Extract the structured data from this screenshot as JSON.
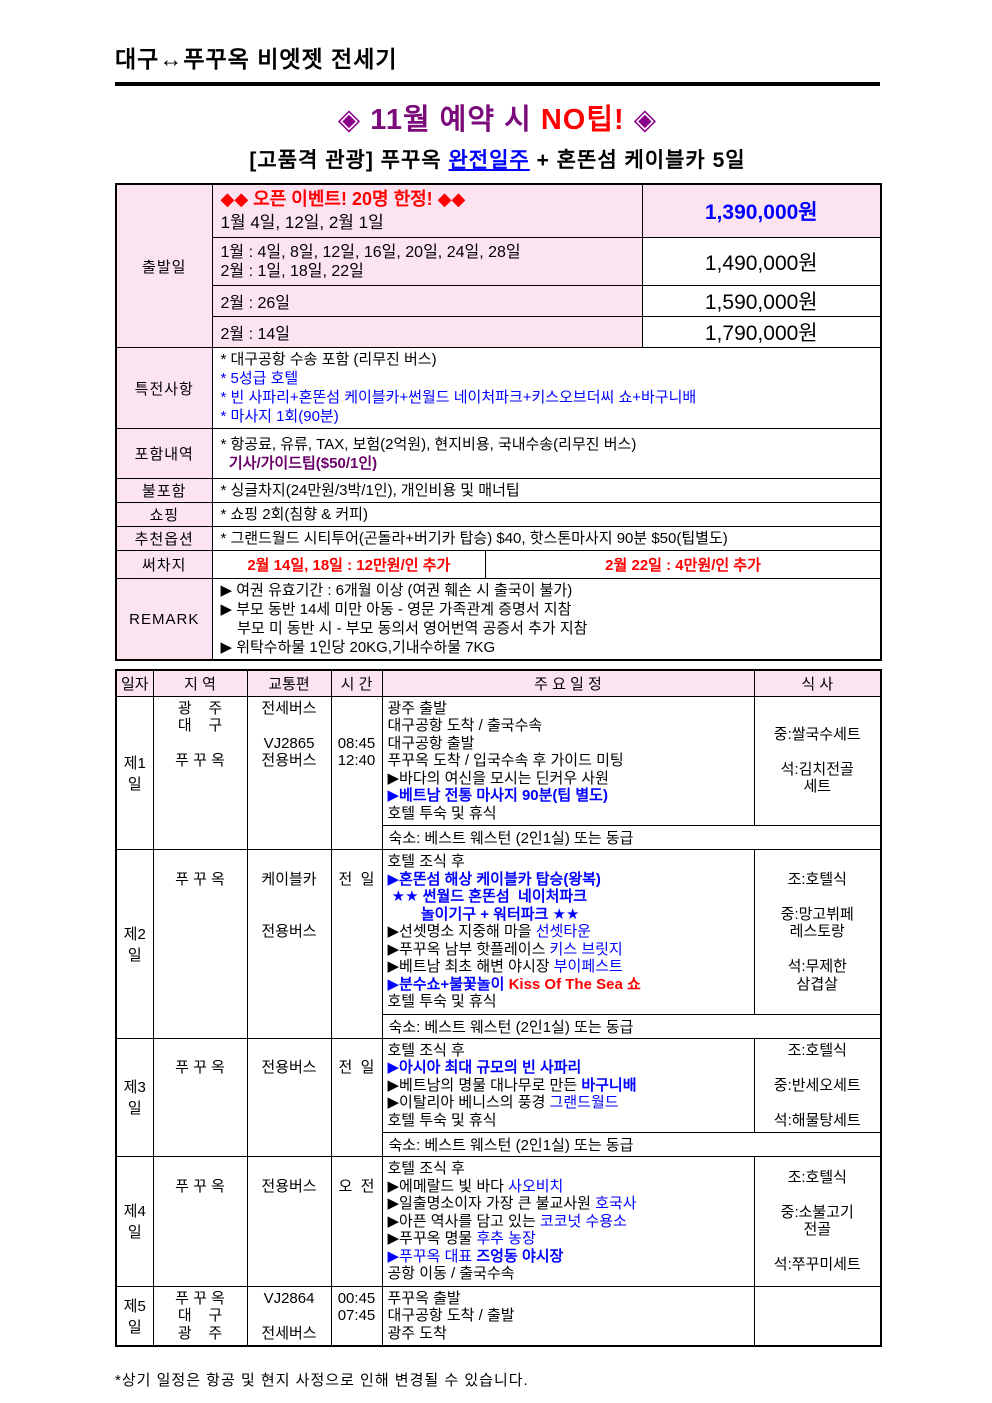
{
  "colors": {
    "accent_pink_bg": "#FBE3F1",
    "blue": "#0000FF",
    "red": "#FF0000",
    "purple_title": "#7B0A7B",
    "diamond_purple": "#8B008B",
    "dark_purple": "#6B006B"
  },
  "header": {
    "doc_title": "대구↔푸꾸옥 비엣젯 전세기",
    "promo": {
      "left_diamond": "◈",
      "text": " 11월 예약 시 ",
      "no_tip": "NO팁! ",
      "right_diamond": "◈"
    },
    "subtitle": {
      "prefix": "[고품격 관광] 푸꾸옥 ",
      "highlight": "완전일주",
      "suffix": " + 혼똔섬 케이블카 5일"
    }
  },
  "info_table": {
    "departure_label": "출발일",
    "departure_rows": {
      "r1": {
        "event": "◆◆ 오픈 이벤트! 20명 한정! ◆◆",
        "dates": "1월 4일, 12일, 2월 1일",
        "price": "1,390,000원"
      },
      "r2": {
        "dates_line1": "1월 : 4일, 8일, 12일, 16일, 20일, 24일, 28일",
        "dates_line2": "2월 : 1일, 18일, 22일",
        "price": "1,490,000원"
      },
      "r3": {
        "dates": "2월 : 26일",
        "price": "1,590,000원"
      },
      "r4": {
        "dates": "2월 : 14일",
        "price": "1,790,000원"
      }
    },
    "benefits": {
      "label": "특전사항",
      "lines": [
        [
          {
            "t": "* 대구공항 수송 포함 (리무진 버스)",
            "c": "k"
          }
        ],
        [
          {
            "t": "* ",
            "c": "b"
          },
          {
            "t": "5성급 호텔",
            "c": "b"
          }
        ],
        [
          {
            "t": "* ",
            "c": "b"
          },
          {
            "t": "빈 사파리+혼똔섬 케이블카+썬월드 네이처파크+키스오브더씨 쇼+바구니배",
            "c": "b"
          }
        ],
        [
          {
            "t": "* ",
            "c": "b"
          },
          {
            "t": "마사지 1회(90분)",
            "c": "b"
          }
        ]
      ]
    },
    "included": {
      "label": "포함내역",
      "lines": [
        [
          {
            "t": "* 항공료, 유류, TAX, 보험(2억원), 현지비용, 국내수송(리무진 버스)",
            "c": "k"
          }
        ],
        [
          {
            "t": "  기사/가이드팁($50/1인)",
            "c": "pb"
          }
        ]
      ]
    },
    "excluded": {
      "label": "불포함",
      "lines": [
        [
          {
            "t": "* 싱글차지(24만원/3박/1인), 개인비용 및 매너팁",
            "c": "k"
          }
        ]
      ]
    },
    "shopping": {
      "label": "쇼핑",
      "lines": [
        [
          {
            "t": "* 쇼핑 2회(침향 & 커피)",
            "c": "k"
          }
        ]
      ]
    },
    "options": {
      "label": "추천옵션",
      "lines": [
        [
          {
            "t": "* 그랜드월드 시티투어(곤돌라+버기카 탑승) $40, 핫스톤마사지 90분 $50(팁별도)",
            "c": "k"
          }
        ]
      ]
    },
    "surcharge": {
      "label": "써차지",
      "left": "2월 14일, 18일 : 12만원/인 추가",
      "right": "2월 22일 : 4만원/인 추가"
    },
    "remark": {
      "label": "REMARK",
      "lines": [
        [
          {
            "t": "▶ 여권 유효기간 : 6개월 이상 (여권 훼손 시 출국이 불가)",
            "c": "k"
          }
        ],
        [
          {
            "t": "▶ 부모 동반 14세 미만 아동 - 영문 가족관계 증명서 지참",
            "c": "k"
          }
        ],
        [
          {
            "t": "    부모 미 동반 시 - 부모 동의서 영어번역 공증서 추가 지참",
            "c": "k"
          }
        ],
        [
          {
            "t": "▶ 위탁수하물 1인당 20KG,기내수하물 7KG",
            "c": "k"
          }
        ]
      ]
    }
  },
  "itinerary": {
    "headers": {
      "day": "일자",
      "region": "지 역",
      "transport": "교통편",
      "time": "시 간",
      "schedule": "주      요      일      정",
      "meals": "식 사"
    },
    "days": [
      {
        "day": "제1일",
        "region": [
          "광    주",
          "대    구",
          "",
          "푸 꾸 옥"
        ],
        "transport": [
          "전세버스",
          "",
          "VJ2865",
          "전용버스"
        ],
        "time": [
          "",
          "",
          "08:45",
          "12:40"
        ],
        "schedule": [
          [
            {
              "t": "광주 출발",
              "c": "k"
            }
          ],
          [
            {
              "t": "대구공항 도착 / 출국수속",
              "c": "k"
            }
          ],
          [
            {
              "t": "대구공항 출발",
              "c": "k"
            }
          ],
          [
            {
              "t": "푸꾸옥 도착 / 입국수속 후 가이드 미팅",
              "c": "k"
            }
          ],
          [
            {
              "t": "▶바다의 여신을 모시는 딘커우 사원",
              "c": "k"
            }
          ],
          [
            {
              "t": "▶베트남 전통 마사지 90분(팁 별도)",
              "c": "bb"
            }
          ],
          [
            {
              "t": "호텔 투숙 및 휴식",
              "c": "k"
            }
          ]
        ],
        "meals": [
          "중:쌀국수세트",
          "",
          "석:김치전골",
          "세트"
        ],
        "lodging": "숙소: 베스트 웨스턴 (2인1실) 또는 동급"
      },
      {
        "day": "제2일",
        "region": [
          "",
          "푸 꾸 옥"
        ],
        "transport": [
          "",
          "케이블카",
          "",
          "",
          "전용버스"
        ],
        "time": [
          "",
          "전  일"
        ],
        "schedule": [
          [
            {
              "t": "호텔 조식 후",
              "c": "k"
            }
          ],
          [
            {
              "t": "▶혼똔섬 해상 케이블카 탑승(왕복)",
              "c": "bb"
            }
          ],
          [
            {
              "t": " ★★ 썬월드 혼똔섬  네이처파크",
              "c": "bb"
            }
          ],
          [
            {
              "t": "        놀이기구 + 워터파크 ★★",
              "c": "bb"
            }
          ],
          [
            {
              "t": "▶선셋명소 지중해 마을 ",
              "c": "k"
            },
            {
              "t": "선셋타운",
              "c": "b"
            }
          ],
          [
            {
              "t": "▶푸꾸옥 남부 핫플레이스 ",
              "c": "k"
            },
            {
              "t": "키스 브릿지",
              "c": "b"
            }
          ],
          [
            {
              "t": "▶베트남 최초 해변 야시장 ",
              "c": "k"
            },
            {
              "t": "부이페스트",
              "c": "b"
            }
          ],
          [
            {
              "t": "▶분수쇼+불꽃놀이 ",
              "c": "bb"
            },
            {
              "t": "Kiss Of The Sea 쇼",
              "c": "rb"
            }
          ],
          [
            {
              "t": "호텔 투숙 및 휴식",
              "c": "k"
            }
          ]
        ],
        "meals": [
          "조:호텔식",
          "",
          "중:망고뷔페",
          "레스토랑",
          "",
          "석:무제한",
          "삼겹살"
        ],
        "lodging": "숙소: 베스트 웨스턴 (2인1실) 또는 동급"
      },
      {
        "day": "제3일",
        "region": [
          "",
          "푸 꾸 옥"
        ],
        "transport": [
          "",
          "전용버스"
        ],
        "time": [
          "",
          "전  일"
        ],
        "schedule": [
          [
            {
              "t": "호텔 조식 후",
              "c": "k"
            }
          ],
          [
            {
              "t": "▶아시아 최대 규모의 빈 사파리",
              "c": "bb"
            }
          ],
          [
            {
              "t": "▶베트남의 명물 대나무로 만든 ",
              "c": "k"
            },
            {
              "t": "바구니배",
              "c": "bb"
            }
          ],
          [
            {
              "t": "▶이탈리아 베니스의 풍경 ",
              "c": "k"
            },
            {
              "t": "그랜드월드",
              "c": "b"
            }
          ],
          [
            {
              "t": "호텔 투숙 및 휴식",
              "c": "k"
            }
          ]
        ],
        "meals": [
          "조:호텔식",
          "",
          "중:반세오세트",
          "",
          "석:해물탕세트"
        ],
        "lodging": "숙소: 베스트 웨스턴 (2인1실) 또는 동급"
      },
      {
        "day": "제4일",
        "region": [
          "",
          "푸 꾸 옥"
        ],
        "transport": [
          "",
          "전용버스"
        ],
        "time": [
          "",
          "오  전"
        ],
        "schedule": [
          [
            {
              "t": "호텔 조식 후",
              "c": "k"
            }
          ],
          [
            {
              "t": "▶에메랄드 빛 바다 ",
              "c": "k"
            },
            {
              "t": "사오비치",
              "c": "b"
            }
          ],
          [
            {
              "t": "▶일출명소이자 가장 큰 불교사원 ",
              "c": "k"
            },
            {
              "t": "호국사",
              "c": "b"
            }
          ],
          [
            {
              "t": "▶아픈 역사를 담고 있는 ",
              "c": "k"
            },
            {
              "t": "코코넛 수용소",
              "c": "b"
            }
          ],
          [
            {
              "t": "▶푸꾸옥 명물 ",
              "c": "k"
            },
            {
              "t": "후추 농장",
              "c": "b"
            }
          ],
          [
            {
              "t": "▶푸꾸옥 대표 ",
              "c": "b"
            },
            {
              "t": "즈엉동 야시장",
              "c": "bb"
            }
          ],
          [
            {
              "t": "공항 이동 / 출국수속",
              "c": "k"
            }
          ]
        ],
        "meals": [
          "조:호텔식",
          "",
          "중:소불고기",
          "전골",
          "",
          "석:쭈꾸미세트"
        ],
        "lodging": null
      },
      {
        "day": "제5일",
        "region": [
          "푸 꾸 옥",
          "대    구",
          "광    주"
        ],
        "transport": [
          "VJ2864",
          "",
          "전세버스"
        ],
        "time": [
          "00:45",
          "07:45"
        ],
        "schedule": [
          [
            {
              "t": "푸꾸옥 출발",
              "c": "k"
            }
          ],
          [
            {
              "t": "대구공항 도착 / 출발",
              "c": "k"
            }
          ],
          [
            {
              "t": "광주 도착",
              "c": "k"
            }
          ]
        ],
        "meals": [],
        "lodging": null
      }
    ]
  },
  "footnote": "*상기 일정은 항공 및 현지 사정으로 인해 변경될 수 있습니다."
}
